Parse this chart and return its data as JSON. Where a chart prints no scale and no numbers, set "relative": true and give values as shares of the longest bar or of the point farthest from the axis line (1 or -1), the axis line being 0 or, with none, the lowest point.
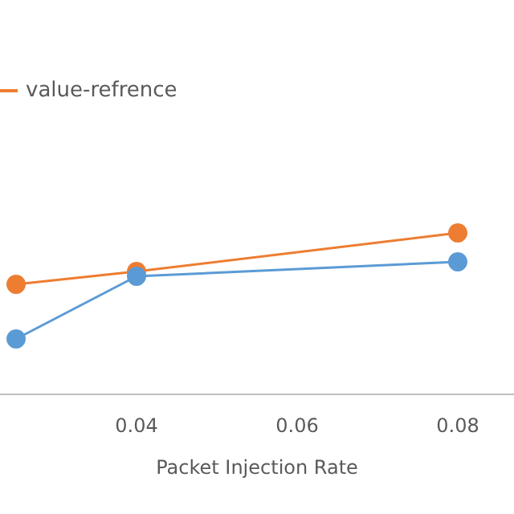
{
  "chart_data": {
    "type": "line",
    "xlabel": "Packet Injection Rate",
    "relative": true,
    "x": [
      0.025,
      0.04,
      0.08
    ],
    "xlim": [
      0.023,
      0.087
    ],
    "xticks": [
      0.04,
      0.06,
      0.08
    ],
    "series": [
      {
        "color": "#5b9bd5",
        "values": [
          0.34,
          0.73,
          0.82
        ]
      },
      {
        "name": "value-refrence",
        "color": "#ed7d31",
        "values": [
          0.68,
          0.76,
          1
        ]
      }
    ],
    "legend": "top left",
    "marker": "circle",
    "tick_labels": "x",
    "grid": false
  }
}
